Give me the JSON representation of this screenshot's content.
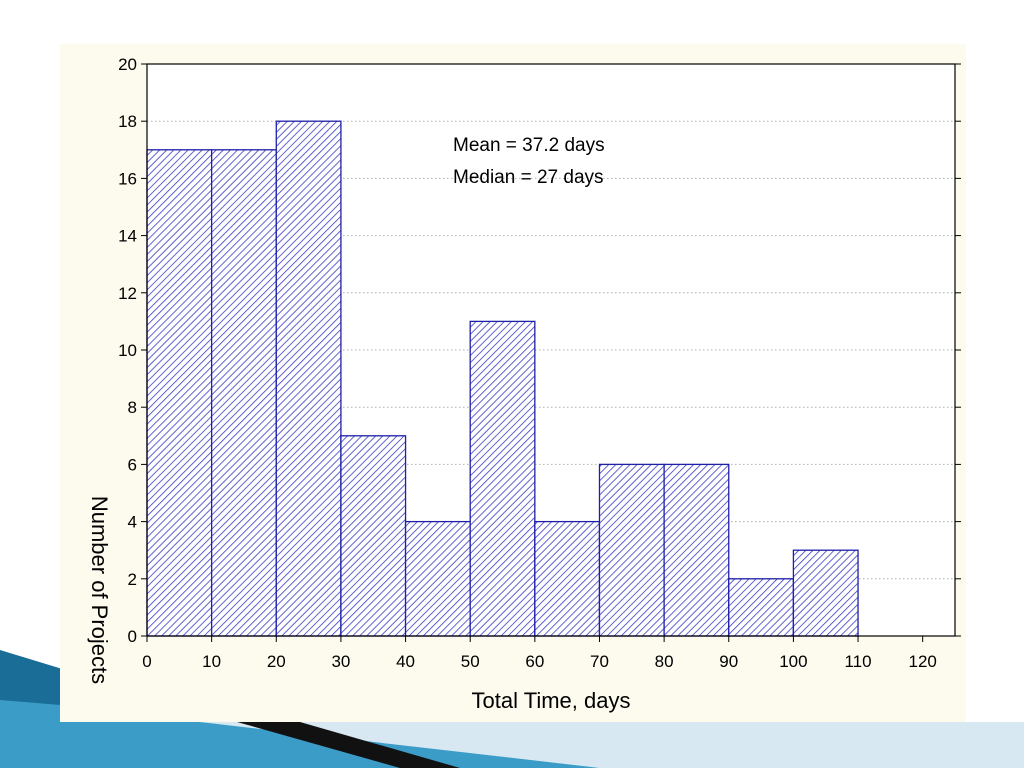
{
  "chart_data": {
    "type": "bar",
    "title": "",
    "xlabel": "Total Time, days",
    "ylabel": "Number of Projects",
    "bin_edges": [
      0,
      10,
      20,
      30,
      40,
      50,
      60,
      70,
      80,
      90,
      100,
      110
    ],
    "values": [
      17,
      17,
      18,
      7,
      4,
      11,
      4,
      6,
      6,
      2,
      3
    ],
    "xlim": [
      0,
      125
    ],
    "ylim": [
      0,
      20
    ],
    "x_ticks": [
      0,
      10,
      20,
      30,
      40,
      50,
      60,
      70,
      80,
      90,
      100,
      110,
      120
    ],
    "y_ticks": [
      0,
      2,
      4,
      6,
      8,
      10,
      12,
      14,
      16,
      18,
      20
    ],
    "grid": true,
    "annotations": [
      "Mean = 37.2 days",
      "Median = 27 days"
    ],
    "colors": {
      "bar_edge": "#1f1fa8",
      "bar_hatch": "#3b3bc4",
      "panel": "#fdfaee"
    }
  }
}
